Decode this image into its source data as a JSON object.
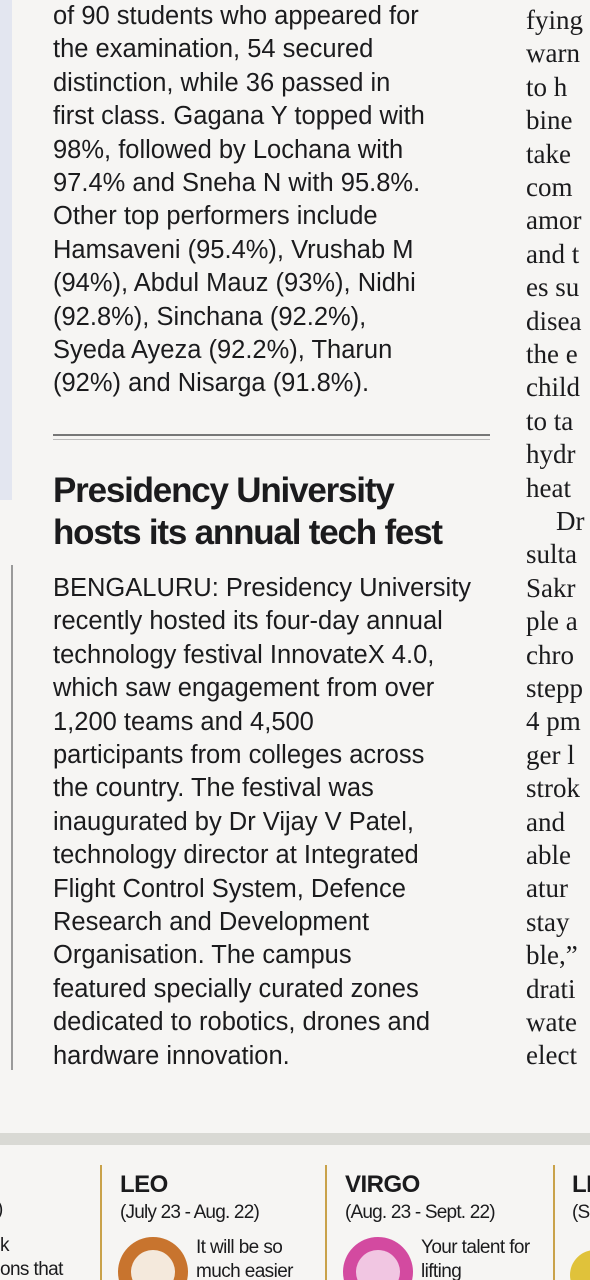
{
  "article_top": {
    "lines": [
      "of 90 students who appeared for",
      "the examination, 54 secured",
      "distinction, while 36 passed in",
      "first class. Gagana Y topped with",
      "98%, followed by Lochana with",
      "97.4% and Sneha N with 95.8%.",
      "Other top performers include",
      "Hamsaveni (95.4%), Vrushab M",
      "(94%), Abdul Mauz (93%), Nidhi",
      "(92.8%), Sinchana (92.2%),",
      "Syeda Ayeza (92.2%), Tharun",
      "(92%) and Nisarga (91.8%)."
    ]
  },
  "article": {
    "headline_lines": [
      "Presidency University",
      "hosts its annual tech fest"
    ],
    "body_lines": [
      "BENGALURU: Presidency University",
      "recently hosted its four-day annual",
      "technology festival InnovateX 4.0,",
      "which saw engagement from over",
      "1,200 teams and 4,500",
      "participants from colleges across",
      "the country. The festival was",
      "inaugurated by Dr Vijay V Patel,",
      "technology director at Integrated",
      "Flight Control System, Defence",
      "Research and Development",
      "Organisation. The campus",
      "featured specially curated zones",
      "dedicated to robotics, drones and",
      "hardware innovation."
    ]
  },
  "side_column": {
    "lines": [
      "fying",
      "warn",
      "to h",
      "bine",
      "take",
      "com",
      "amor",
      "and t",
      "es su",
      "disea",
      "the e",
      "child",
      "to ta",
      "hydr",
      "heat",
      "Dr",
      "sulta",
      "Sakr",
      "ple a",
      "chro",
      "stepp",
      "4 pm",
      "ger l",
      "strok",
      "and",
      "able",
      "atur",
      "stay",
      "ble,”",
      "drati",
      "wate",
      "elect"
    ]
  },
  "horoscope": {
    "left_fragment": [
      ")",
      "k",
      "ons that"
    ],
    "signs": [
      {
        "name": "LEO",
        "dates": "(July 23 - Aug. 22)",
        "text_lines": [
          "It will be so",
          "much easier"
        ]
      },
      {
        "name": "VIRGO",
        "dates": "(Aug. 23 - Sept. 22)",
        "text_lines": [
          "Your talent for",
          "lifting"
        ]
      }
    ],
    "right_fragment": [
      "LI",
      "(S"
    ]
  }
}
